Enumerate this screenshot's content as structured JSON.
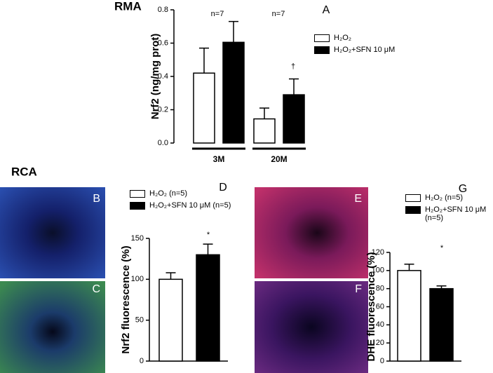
{
  "sections": [
    "RMA",
    "RCA"
  ],
  "panels": [
    {
      "label": "B"
    },
    {
      "label": "C"
    },
    {
      "label": "E"
    },
    {
      "label": "F"
    }
  ],
  "chart_data": [
    {
      "type": "bar",
      "label": "A",
      "y_label": "Nrf2 (ng/mg prot)",
      "categories": [
        "3M",
        "20M"
      ],
      "series": [
        {
          "name": "H₂O₂",
          "color": "#ffffff",
          "values": [
            0.42,
            0.145
          ],
          "errors": [
            0.15,
            0.065
          ]
        },
        {
          "name": "H₂O₂+SFN 10 μM",
          "color": "#000000",
          "values": [
            0.605,
            0.29
          ],
          "errors": [
            0.125,
            0.095
          ]
        }
      ],
      "annotations": [
        "n=7",
        "n=7",
        "†"
      ],
      "ylim": [
        0,
        0.8
      ],
      "yticks": [
        {
          "value": 0,
          "label": "0.0"
        },
        0.2,
        0.4,
        0.6,
        0.8
      ]
    },
    {
      "type": "bar",
      "label": "D",
      "y_label": "Nrf2 fluorescence (%)",
      "categories": [
        null
      ],
      "series": [
        {
          "name": "H₂O₂ (n=5)",
          "color": "#ffffff",
          "values": [
            100
          ],
          "errors": [
            8
          ]
        },
        {
          "name": "H₂O₂+SFN 10 μM (n=5)",
          "color": "#000000",
          "values": [
            130
          ],
          "errors": [
            13
          ]
        }
      ],
      "annotations": [
        "*"
      ],
      "ylim": [
        0,
        150
      ],
      "yticks": [
        0,
        50,
        100,
        150
      ]
    },
    {
      "type": "bar",
      "label": "G",
      "y_label": "DHE fluorescence (%)",
      "categories": [
        null
      ],
      "series": [
        {
          "name": "H₂O₂ (n=5)",
          "color": "#ffffff",
          "values": [
            100
          ],
          "errors": [
            7
          ]
        },
        {
          "name": "H₂O₂+SFN 10 μM (n=5)",
          "color": "#000000",
          "values": [
            80
          ],
          "errors": [
            3
          ]
        }
      ],
      "annotations": [
        "*"
      ],
      "ylim": [
        0,
        120
      ],
      "yticks": [
        0,
        20,
        40,
        60,
        80,
        100,
        120
      ]
    }
  ]
}
